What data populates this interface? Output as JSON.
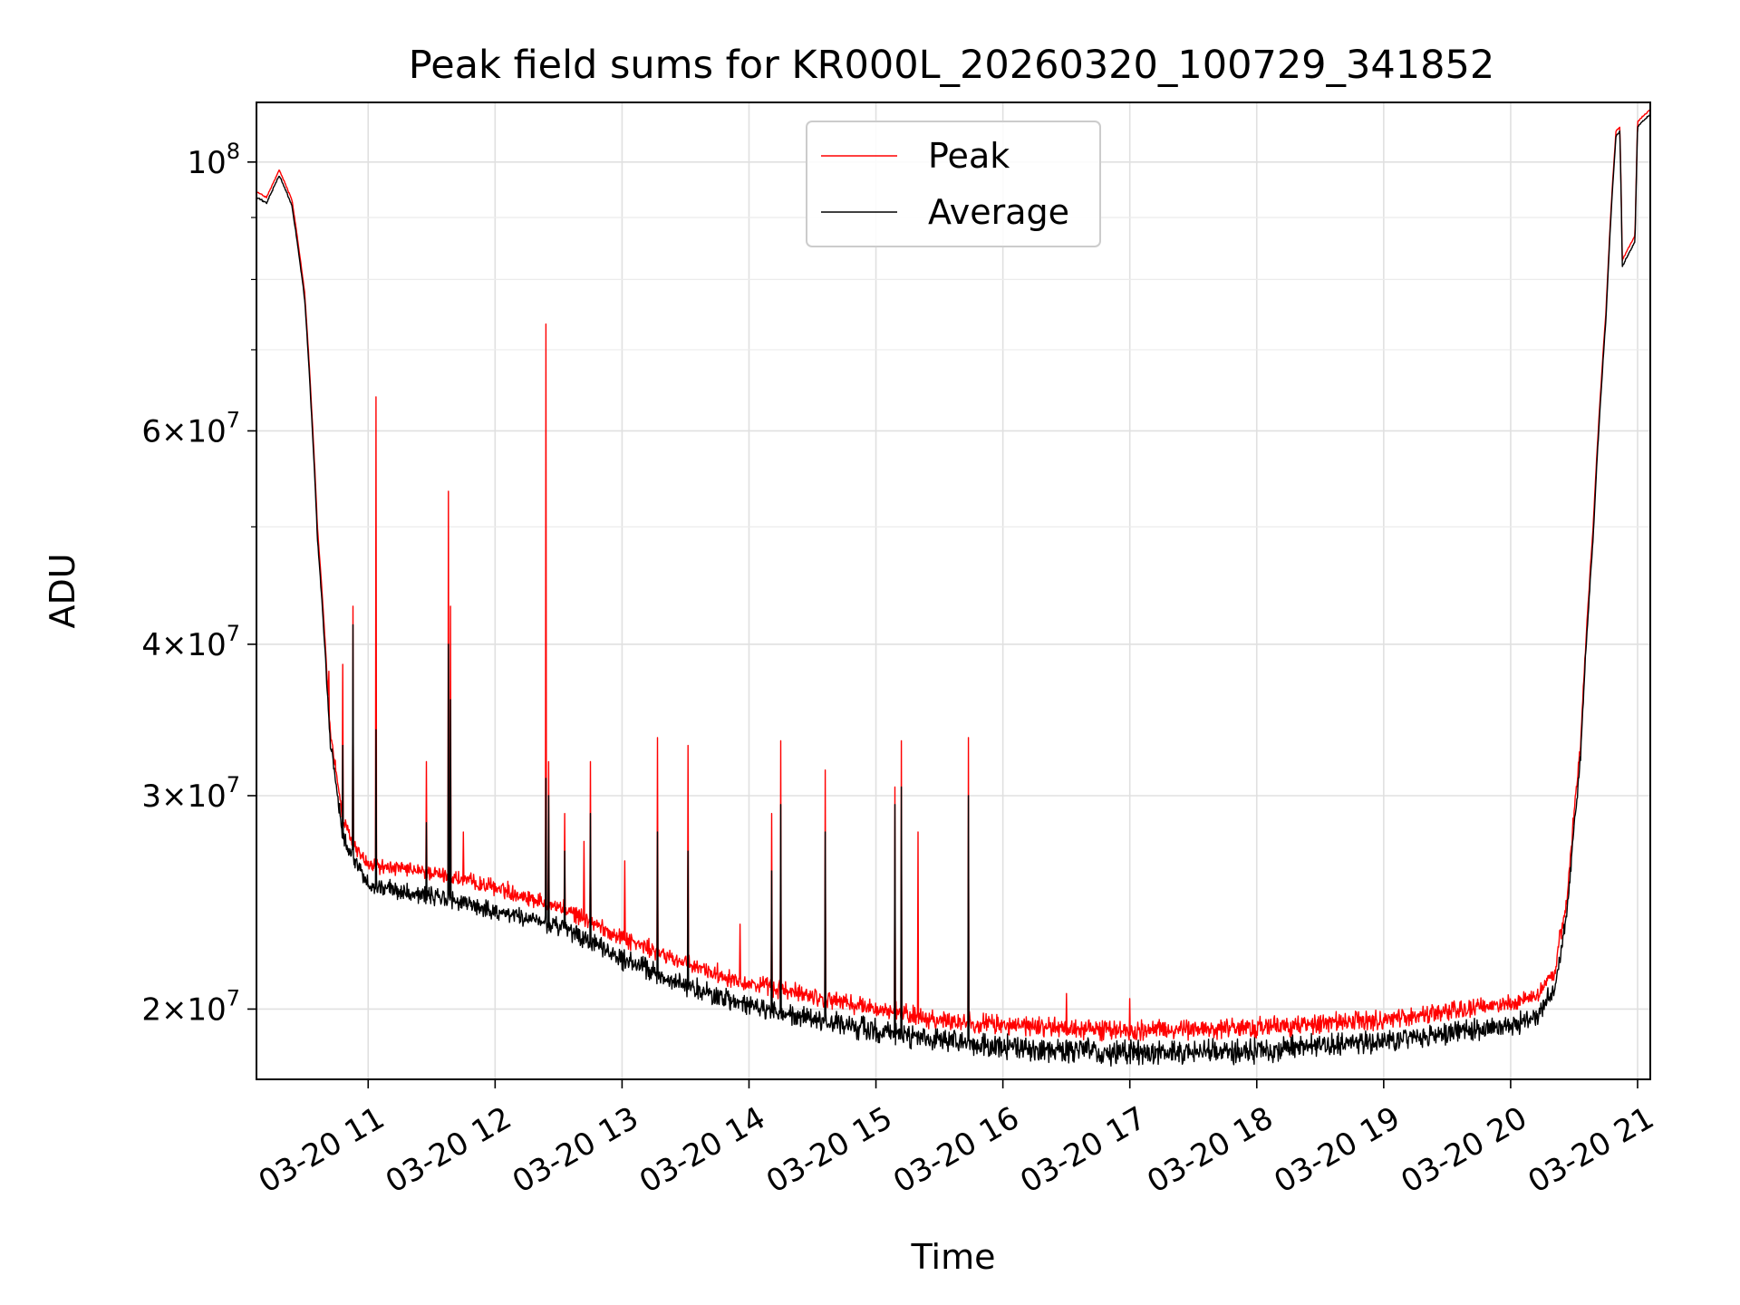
{
  "chart_data": {
    "type": "line",
    "title": "Peak field sums for KR000L_20260320_100729_341852",
    "xlabel": "Time",
    "ylabel": "ADU",
    "yscale": "log",
    "ylim": [
      17500000,
      112000000
    ],
    "xlim_hours": [
      10.12,
      21.1
    ],
    "grid": true,
    "legend_position": "upper center",
    "x_ticks": [
      {
        "hour": 11,
        "label": "03-20 11"
      },
      {
        "hour": 12,
        "label": "03-20 12"
      },
      {
        "hour": 13,
        "label": "03-20 13"
      },
      {
        "hour": 14,
        "label": "03-20 14"
      },
      {
        "hour": 15,
        "label": "03-20 15"
      },
      {
        "hour": 16,
        "label": "03-20 16"
      },
      {
        "hour": 17,
        "label": "03-20 17"
      },
      {
        "hour": 18,
        "label": "03-20 18"
      },
      {
        "hour": 19,
        "label": "03-20 19"
      },
      {
        "hour": 20,
        "label": "03-20 20"
      },
      {
        "hour": 21,
        "label": "03-20 21"
      }
    ],
    "y_major_ticks": [
      {
        "value": 20000000,
        "mantissa": "2",
        "exponent": "7"
      },
      {
        "value": 30000000,
        "mantissa": "3",
        "exponent": "7"
      },
      {
        "value": 40000000,
        "mantissa": "4",
        "exponent": "7"
      },
      {
        "value": 60000000,
        "mantissa": "6",
        "exponent": "7"
      },
      {
        "value": 100000000,
        "mantissa": "",
        "exponent": "8"
      }
    ],
    "y_minor_ticks": [
      50000000,
      70000000,
      80000000,
      90000000
    ],
    "series": [
      {
        "name": "Peak",
        "color": "#ff0000",
        "base": [
          [
            10.12,
            94.5
          ],
          [
            10.2,
            93.5
          ],
          [
            10.3,
            98.5
          ],
          [
            10.4,
            93.0
          ],
          [
            10.5,
            78.0
          ],
          [
            10.6,
            50.0
          ],
          [
            10.7,
            34.0
          ],
          [
            10.8,
            28.6
          ],
          [
            10.9,
            27.2
          ],
          [
            11.0,
            26.3
          ],
          [
            11.5,
            25.9
          ],
          [
            12.0,
            25.2
          ],
          [
            12.5,
            24.3
          ],
          [
            13.0,
            22.9
          ],
          [
            13.5,
            21.8
          ],
          [
            14.0,
            21.0
          ],
          [
            14.5,
            20.5
          ],
          [
            15.0,
            20.0
          ],
          [
            15.5,
            19.6
          ],
          [
            16.0,
            19.4
          ],
          [
            17.0,
            19.2
          ],
          [
            18.0,
            19.3
          ],
          [
            19.0,
            19.6
          ],
          [
            19.5,
            19.9
          ],
          [
            20.0,
            20.2
          ],
          [
            20.2,
            20.5
          ],
          [
            20.35,
            21.5
          ],
          [
            20.45,
            25.0
          ],
          [
            20.55,
            33.0
          ],
          [
            20.65,
            50.0
          ],
          [
            20.75,
            75.0
          ],
          [
            20.8,
            95.0
          ],
          [
            20.83,
            106.0
          ],
          [
            20.86,
            107.0
          ],
          [
            20.88,
            83.0
          ],
          [
            20.98,
            87.0
          ],
          [
            21.0,
            108.0
          ],
          [
            21.1,
            110.5
          ]
        ],
        "spikes": [
          [
            10.69,
            38.0
          ],
          [
            10.8,
            38.5
          ],
          [
            10.88,
            43.0
          ],
          [
            11.06,
            64.0
          ],
          [
            11.46,
            32.0
          ],
          [
            11.63,
            53.5
          ],
          [
            11.65,
            43.0
          ],
          [
            11.75,
            28.0
          ],
          [
            12.1,
            25.5
          ],
          [
            12.4,
            73.5
          ],
          [
            12.42,
            32.0
          ],
          [
            12.55,
            29.0
          ],
          [
            12.7,
            27.5
          ],
          [
            12.75,
            32.0
          ],
          [
            13.02,
            26.5
          ],
          [
            13.28,
            33.5
          ],
          [
            13.52,
            33.0
          ],
          [
            13.93,
            23.5
          ],
          [
            14.18,
            29.0
          ],
          [
            14.25,
            33.3
          ],
          [
            14.6,
            31.5
          ],
          [
            15.15,
            30.5
          ],
          [
            15.2,
            33.3
          ],
          [
            15.33,
            28.0
          ],
          [
            15.73,
            33.5
          ],
          [
            16.5,
            20.6
          ],
          [
            17.0,
            20.4
          ]
        ],
        "noise": 0.45
      },
      {
        "name": "Average",
        "color": "#000000",
        "base": [
          [
            10.12,
            93.5
          ],
          [
            10.2,
            92.5
          ],
          [
            10.3,
            97.5
          ],
          [
            10.4,
            92.0
          ],
          [
            10.5,
            77.0
          ],
          [
            10.6,
            49.0
          ],
          [
            10.7,
            33.2
          ],
          [
            10.8,
            27.8
          ],
          [
            10.9,
            26.5
          ],
          [
            11.0,
            25.3
          ],
          [
            11.5,
            24.8
          ],
          [
            12.0,
            24.1
          ],
          [
            12.5,
            23.4
          ],
          [
            13.0,
            22.0
          ],
          [
            13.5,
            20.9
          ],
          [
            14.0,
            20.1
          ],
          [
            14.5,
            19.6
          ],
          [
            15.0,
            19.2
          ],
          [
            15.5,
            18.8
          ],
          [
            16.0,
            18.6
          ],
          [
            17.0,
            18.4
          ],
          [
            18.0,
            18.5
          ],
          [
            19.0,
            18.8
          ],
          [
            19.5,
            19.1
          ],
          [
            20.0,
            19.4
          ],
          [
            20.2,
            19.7
          ],
          [
            20.35,
            20.8
          ],
          [
            20.45,
            24.3
          ],
          [
            20.55,
            32.2
          ],
          [
            20.65,
            49.0
          ],
          [
            20.75,
            74.0
          ],
          [
            20.8,
            94.0
          ],
          [
            20.83,
            105.0
          ],
          [
            20.86,
            106.0
          ],
          [
            20.88,
            82.0
          ],
          [
            20.98,
            86.0
          ],
          [
            21.0,
            107.0
          ],
          [
            21.1,
            109.5
          ]
        ],
        "spikes": [
          [
            10.69,
            32.0
          ],
          [
            10.8,
            33.0
          ],
          [
            10.88,
            41.5
          ],
          [
            11.06,
            34.0
          ],
          [
            11.46,
            28.5
          ],
          [
            11.63,
            40.0
          ],
          [
            11.65,
            36.0
          ],
          [
            12.4,
            31.0
          ],
          [
            12.42,
            30.0
          ],
          [
            12.55,
            27.0
          ],
          [
            12.75,
            29.0
          ],
          [
            13.28,
            28.0
          ],
          [
            13.52,
            27.0
          ],
          [
            14.18,
            26.0
          ],
          [
            14.25,
            29.5
          ],
          [
            14.6,
            28.0
          ],
          [
            15.15,
            29.5
          ],
          [
            15.2,
            30.5
          ],
          [
            15.73,
            30.0
          ]
        ],
        "noise": 0.5
      }
    ]
  }
}
